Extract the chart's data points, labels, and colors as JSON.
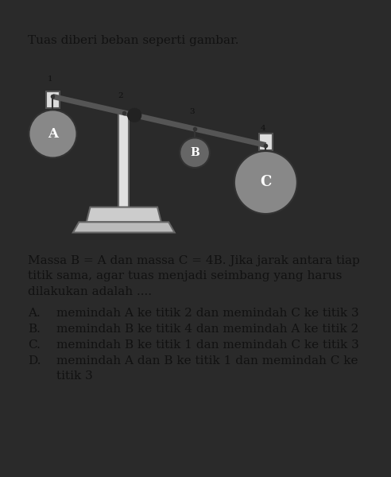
{
  "bg_color": "#f5f5f0",
  "outer_bg": "#2a2a2a",
  "title": "Tuas diberi beban seperti gambar.",
  "title_fontsize": 11.0,
  "paragraph_lines": [
    "Massa B = A dan massa C = 4B. Jika jarak antara tiap",
    "titik sama, agar tuas menjadi seimbang yang harus",
    "dilakukan adalah ...."
  ],
  "options": [
    [
      "A.",
      "memindah A ke titik 2 dan memindah C ke titik 3"
    ],
    [
      "B.",
      "memindah B ke titik 4 dan memindah A ke titik 2"
    ],
    [
      "C.",
      "memindah B ke titik 1 dan memindah C ke titik 3"
    ],
    [
      "D.",
      "memindah A dan B ke titik 1 dan memindah C ke"
    ],
    [
      "",
      "titik 3"
    ]
  ],
  "text_fontsize": 11.0,
  "lever_color": "#555555",
  "fulcrum_color": "#aaaaaa",
  "mass_A_color": "#888888",
  "mass_B_color": "#666666",
  "mass_C_color": "#888888",
  "dark_dot_color": "#222222",
  "text_color": "#111111"
}
